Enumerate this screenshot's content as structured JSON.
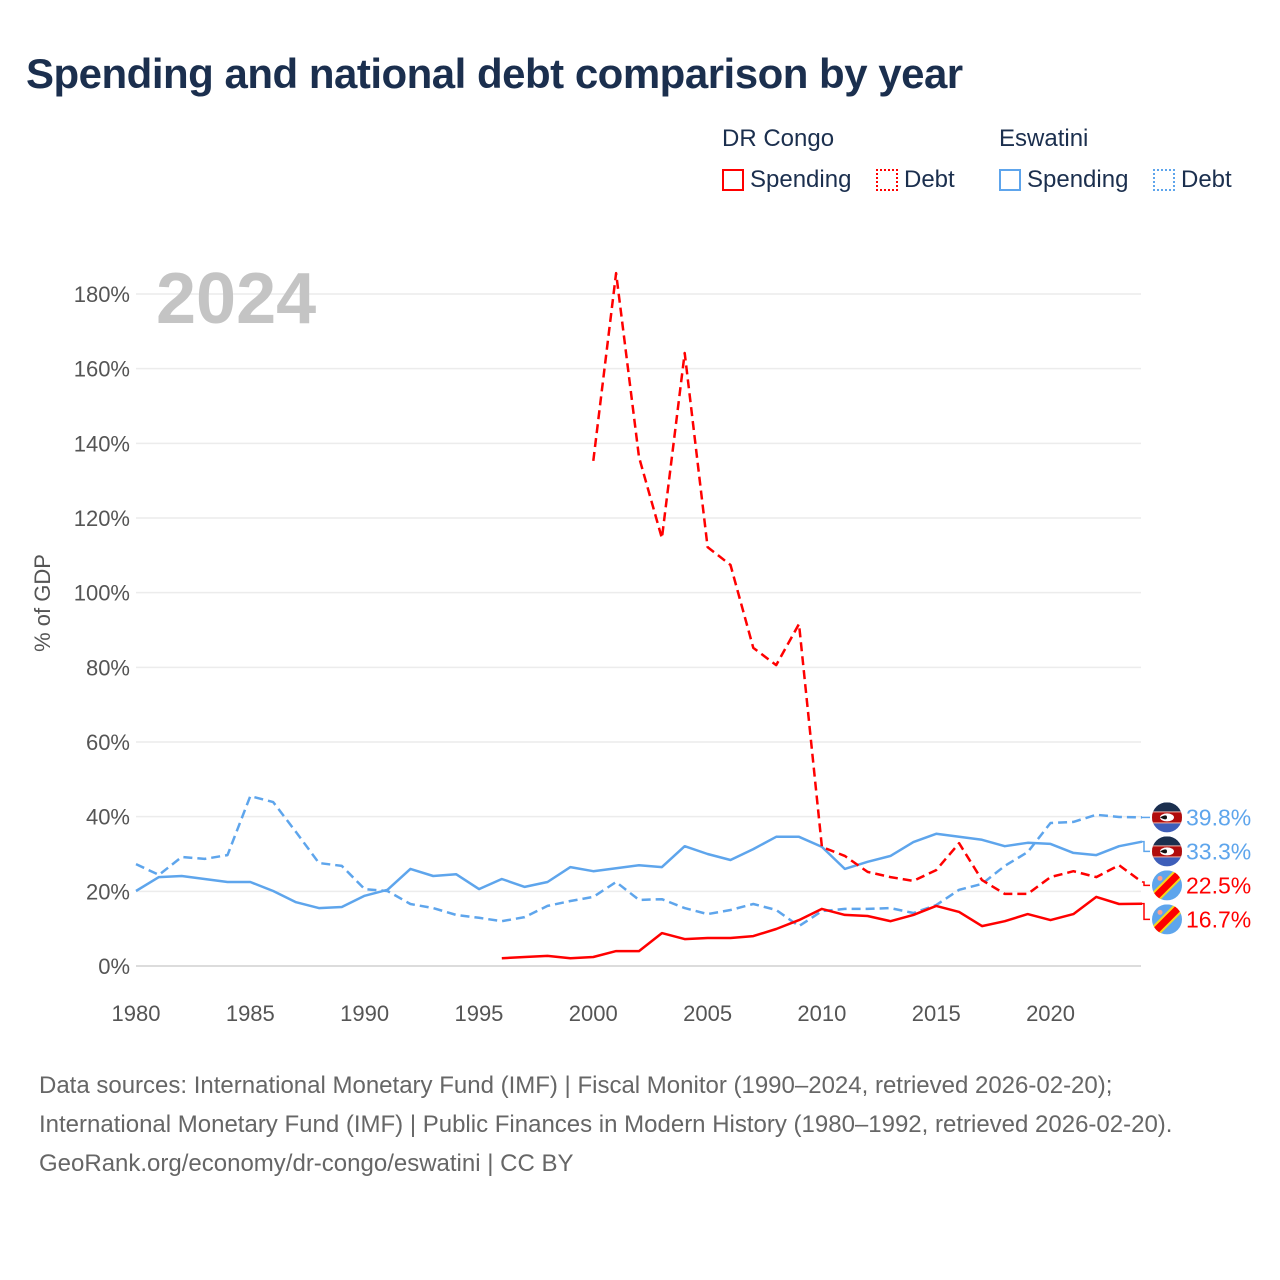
{
  "chart_data": {
    "type": "line",
    "title": "Spending and national debt comparison by year",
    "ylabel": "% of GDP",
    "xlabel": "",
    "xlim": [
      1980,
      2024
    ],
    "ylim": [
      0,
      180
    ],
    "x_ticks": [
      "1980",
      "1985",
      "1990",
      "1995",
      "2000",
      "2005",
      "2010",
      "2015",
      "2020"
    ],
    "y_ticks": [
      "0%",
      "20%",
      "40%",
      "60%",
      "80%",
      "100%",
      "120%",
      "140%",
      "160%",
      "180%"
    ],
    "grid": true,
    "year_overlay": "2024",
    "legend": {
      "placement": "top-right",
      "groups": [
        {
          "name": "DR Congo",
          "items": [
            "Spending",
            "Debt"
          ]
        },
        {
          "name": "Eswatini",
          "items": [
            "Spending",
            "Debt"
          ]
        }
      ]
    },
    "series": [
      {
        "name": "Eswatini Spending",
        "country": "Eswatini",
        "kind": "Spending",
        "color": "#5ea5ec",
        "dashed": false,
        "start": 1980,
        "end_label": "33.3%",
        "values": [
          20.1,
          23.8,
          24.1,
          23.3,
          22.5,
          22.5,
          20.1,
          17.1,
          15.5,
          15.8,
          18.8,
          20.4,
          26.0,
          24.1,
          24.6,
          20.6,
          23.3,
          21.2,
          22.5,
          26.5,
          25.4,
          26.2,
          27.0,
          26.5,
          32.1,
          30.0,
          28.4,
          31.3,
          34.6,
          34.6,
          31.9,
          26.0,
          27.9,
          29.5,
          33.2,
          35.4,
          34.6,
          33.8,
          32.1,
          33.0,
          32.7,
          30.3,
          29.7,
          32.1,
          33.3
        ]
      },
      {
        "name": "Eswatini Debt",
        "country": "Eswatini",
        "kind": "Debt",
        "color": "#5ea5ec",
        "dashed": true,
        "start": 1980,
        "end_label": "39.8%",
        "values": [
          27.3,
          24.4,
          29.2,
          28.7,
          29.7,
          45.5,
          43.9,
          35.9,
          27.6,
          26.8,
          20.6,
          20.1,
          16.6,
          15.5,
          13.7,
          12.9,
          12.0,
          13.1,
          16.1,
          17.4,
          18.5,
          22.5,
          17.7,
          17.9,
          15.5,
          13.9,
          15.0,
          16.6,
          15.0,
          10.7,
          14.7,
          15.3,
          15.3,
          15.5,
          14.2,
          16.3,
          20.4,
          22.0,
          26.8,
          30.5,
          38.3,
          38.6,
          40.5,
          39.9,
          39.8
        ]
      },
      {
        "name": "DR Congo Spending",
        "country": "DR Congo",
        "kind": "Spending",
        "color": "#ff0000",
        "dashed": false,
        "start": 1996,
        "end_label": "16.7%",
        "values": [
          2.1,
          2.4,
          2.7,
          2.1,
          2.4,
          4.0,
          4.0,
          8.8,
          7.2,
          7.5,
          7.5,
          8.0,
          9.9,
          12.3,
          15.3,
          13.7,
          13.4,
          12.0,
          13.7,
          16.1,
          14.5,
          10.7,
          12.0,
          13.9,
          12.3,
          13.9,
          18.5,
          16.6,
          16.7
        ]
      },
      {
        "name": "DR Congo Debt",
        "country": "DR Congo",
        "kind": "Debt",
        "color": "#ff0000",
        "dashed": true,
        "start": 2000,
        "end_label": "22.5%",
        "values": [
          135.3,
          185.6,
          136.3,
          114.6,
          164.2,
          112.2,
          107.4,
          85.2,
          80.6,
          91.6,
          31.9,
          29.5,
          25.2,
          23.8,
          22.8,
          25.7,
          32.9,
          23.0,
          19.3,
          19.3,
          23.8,
          25.4,
          23.8,
          27.0,
          22.5
        ]
      }
    ]
  },
  "colors": {
    "dr_congo": "#ff0000",
    "eswatini": "#5ea5ec",
    "title": "#1b2f4e"
  },
  "footer": {
    "sources": "Data sources: International Monetary Fund (IMF) | Fiscal Monitor (1990–2024, retrieved 2026-02-20); International Monetary Fund (IMF) | Public Finances in Modern History (1980–1992, retrieved 2026-02-20).",
    "credit": "GeoRank.org/economy/dr-congo/eswatini | CC BY"
  }
}
